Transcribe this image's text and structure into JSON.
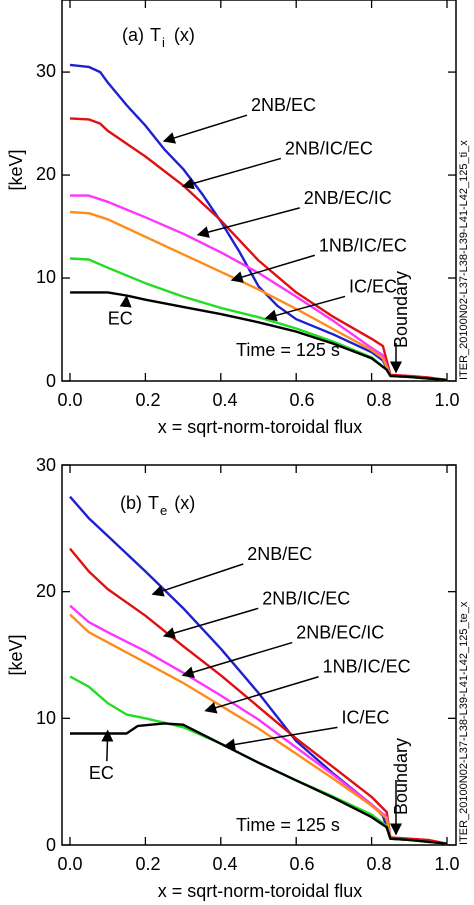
{
  "side_label": "ITER_20100N02-L37-L38-L39-L41-L42_125_ti_x",
  "side_label_2": "ITER_20100N02-L37-L38-L39-L41-L42_125_te_x",
  "colors": {
    "2NB/EC": "#1f1fd0",
    "2NB/IC/EC": "#e01010",
    "2NB/EC/IC": "#ff33ff",
    "1NB/IC/EC": "#ff8c1a",
    "IC/EC": "#22dd22",
    "EC": "#000000"
  },
  "chart_data": [
    {
      "type": "line",
      "title_prefix": "(a)",
      "title_main": "T",
      "title_sub": "i",
      "title_arg": "(x)",
      "ylabel": "[keV]",
      "xlabel": "x = sqrt-norm-toroidal flux",
      "annotation": "Time = 125 s",
      "boundary_label": "Boundary",
      "xlim": [
        0,
        1
      ],
      "ylim": [
        0,
        37
      ],
      "xticks": [
        "0.0",
        "0.2",
        "0.4",
        "0.6",
        "0.8",
        "1.0"
      ],
      "yticks": [
        "0",
        "10",
        "20",
        "30"
      ],
      "series": [
        {
          "name": "2NB/EC",
          "points": [
            [
              0,
              30.7
            ],
            [
              0.05,
              30.5
            ],
            [
              0.08,
              30
            ],
            [
              0.1,
              29
            ],
            [
              0.15,
              26.8
            ],
            [
              0.2,
              24.8
            ],
            [
              0.25,
              22.5
            ],
            [
              0.3,
              20.6
            ],
            [
              0.35,
              18.2
            ],
            [
              0.4,
              15.5
            ],
            [
              0.45,
              12.5
            ],
            [
              0.5,
              9.2
            ],
            [
              0.55,
              7.3
            ],
            [
              0.6,
              6
            ],
            [
              0.7,
              4.5
            ],
            [
              0.8,
              2.8
            ],
            [
              0.83,
              2
            ],
            [
              0.85,
              0.5
            ],
            [
              0.9,
              0.4
            ],
            [
              0.95,
              0.3
            ],
            [
              1.0,
              0.1
            ]
          ]
        },
        {
          "name": "2NB/IC/EC",
          "points": [
            [
              0,
              25.5
            ],
            [
              0.05,
              25.4
            ],
            [
              0.08,
              25
            ],
            [
              0.1,
              24.3
            ],
            [
              0.2,
              21.8
            ],
            [
              0.3,
              19
            ],
            [
              0.4,
              15.6
            ],
            [
              0.5,
              11.7
            ],
            [
              0.6,
              8.6
            ],
            [
              0.7,
              6.2
            ],
            [
              0.8,
              4.1
            ],
            [
              0.83,
              3.4
            ],
            [
              0.85,
              0.6
            ],
            [
              0.9,
              0.5
            ],
            [
              0.95,
              0.35
            ],
            [
              1.0,
              0.1
            ]
          ]
        },
        {
          "name": "2NB/EC/IC",
          "points": [
            [
              0,
              18
            ],
            [
              0.05,
              18
            ],
            [
              0.1,
              17.4
            ],
            [
              0.2,
              15.9
            ],
            [
              0.3,
              14.3
            ],
            [
              0.4,
              12.5
            ],
            [
              0.5,
              10.5
            ],
            [
              0.6,
              8.2
            ],
            [
              0.7,
              5.8
            ],
            [
              0.8,
              3.2
            ],
            [
              0.83,
              2.5
            ],
            [
              0.85,
              0.5
            ],
            [
              0.9,
              0.4
            ],
            [
              1.0,
              0.1
            ]
          ]
        },
        {
          "name": "1NB/IC/EC",
          "points": [
            [
              0,
              16.4
            ],
            [
              0.05,
              16.3
            ],
            [
              0.1,
              15.7
            ],
            [
              0.2,
              14
            ],
            [
              0.3,
              12.3
            ],
            [
              0.4,
              10.6
            ],
            [
              0.5,
              8.9
            ],
            [
              0.6,
              7
            ],
            [
              0.7,
              5
            ],
            [
              0.8,
              3
            ],
            [
              0.83,
              2.2
            ],
            [
              0.85,
              0.5
            ],
            [
              0.9,
              0.4
            ],
            [
              1.0,
              0.1
            ]
          ]
        },
        {
          "name": "IC/EC",
          "points": [
            [
              0,
              11.9
            ],
            [
              0.05,
              11.8
            ],
            [
              0.1,
              11
            ],
            [
              0.2,
              9.5
            ],
            [
              0.3,
              8.2
            ],
            [
              0.4,
              7.1
            ],
            [
              0.5,
              6.2
            ],
            [
              0.6,
              5.1
            ],
            [
              0.7,
              3.8
            ],
            [
              0.8,
              2.3
            ],
            [
              0.84,
              1.1
            ],
            [
              0.85,
              0.5
            ],
            [
              0.9,
              0.4
            ],
            [
              1.0,
              0.1
            ]
          ]
        },
        {
          "name": "EC",
          "points": [
            [
              0,
              8.6
            ],
            [
              0.1,
              8.6
            ],
            [
              0.15,
              8.3
            ],
            [
              0.2,
              7.9
            ],
            [
              0.3,
              7.2
            ],
            [
              0.4,
              6.5
            ],
            [
              0.5,
              5.7
            ],
            [
              0.6,
              4.8
            ],
            [
              0.7,
              3.6
            ],
            [
              0.8,
              2.2
            ],
            [
              0.84,
              1.1
            ],
            [
              0.85,
              0.5
            ],
            [
              0.9,
              0.4
            ],
            [
              1.0,
              0.1
            ]
          ]
        }
      ],
      "labels": [
        {
          "text": "2NB/EC",
          "tx": 0.48,
          "ty": 26.2,
          "ax": 0.25,
          "ay": 23.3
        },
        {
          "text": "2NB/IC/EC",
          "tx": 0.57,
          "ty": 22,
          "ax": 0.3,
          "ay": 18.9
        },
        {
          "text": "2NB/EC/IC",
          "tx": 0.62,
          "ty": 17.2,
          "ax": 0.34,
          "ay": 14.2
        },
        {
          "text": "1NB/IC/EC",
          "tx": 0.66,
          "ty": 12.6,
          "ax": 0.43,
          "ay": 9.8
        },
        {
          "text": "IC/EC",
          "tx": 0.74,
          "ty": 8.6,
          "ax": 0.52,
          "ay": 6.1
        },
        {
          "text": "EC",
          "tx": 0.1,
          "ty": 5.5,
          "ax": 0.15,
          "ay": 8.2
        }
      ]
    },
    {
      "type": "line",
      "title_prefix": "(b)",
      "title_main": "T",
      "title_sub": "e",
      "title_arg": "(x)",
      "ylabel": "[keV]",
      "xlabel": "x = sqrt-norm-toroidal flux",
      "annotation": "Time = 125 s",
      "boundary_label": "Boundary",
      "xlim": [
        0,
        1
      ],
      "ylim": [
        0,
        30
      ],
      "xticks": [
        "0.0",
        "0.2",
        "0.4",
        "0.6",
        "0.8",
        "1.0"
      ],
      "yticks": [
        "0",
        "10",
        "20",
        "30"
      ],
      "series": [
        {
          "name": "2NB/EC",
          "points": [
            [
              0,
              27.5
            ],
            [
              0.05,
              25.8
            ],
            [
              0.1,
              24.4
            ],
            [
              0.2,
              21.6
            ],
            [
              0.3,
              18.7
            ],
            [
              0.4,
              15.5
            ],
            [
              0.5,
              12
            ],
            [
              0.6,
              8.2
            ],
            [
              0.7,
              5.6
            ],
            [
              0.8,
              3.2
            ],
            [
              0.83,
              2.3
            ],
            [
              0.85,
              0.5
            ],
            [
              0.9,
              0.4
            ],
            [
              0.95,
              0.3
            ],
            [
              1.0,
              0.1
            ]
          ]
        },
        {
          "name": "2NB/IC/EC",
          "points": [
            [
              0,
              23.4
            ],
            [
              0.05,
              21.6
            ],
            [
              0.1,
              20.2
            ],
            [
              0.2,
              18.1
            ],
            [
              0.3,
              15.7
            ],
            [
              0.4,
              13.4
            ],
            [
              0.5,
              10.9
            ],
            [
              0.6,
              8.4
            ],
            [
              0.7,
              6.1
            ],
            [
              0.8,
              3.8
            ],
            [
              0.84,
              2.6
            ],
            [
              0.85,
              0.6
            ],
            [
              0.9,
              0.5
            ],
            [
              0.95,
              0.4
            ],
            [
              1.0,
              0.1
            ]
          ]
        },
        {
          "name": "2NB/EC/IC",
          "points": [
            [
              0,
              18.9
            ],
            [
              0.05,
              17.6
            ],
            [
              0.1,
              16.8
            ],
            [
              0.2,
              15.3
            ],
            [
              0.3,
              13.6
            ],
            [
              0.4,
              11.8
            ],
            [
              0.5,
              9.9
            ],
            [
              0.6,
              7.7
            ],
            [
              0.7,
              5.5
            ],
            [
              0.8,
              3.2
            ],
            [
              0.84,
              2.2
            ],
            [
              0.85,
              0.5
            ],
            [
              0.9,
              0.4
            ],
            [
              1.0,
              0.1
            ]
          ]
        },
        {
          "name": "1NB/IC/EC",
          "points": [
            [
              0,
              18.2
            ],
            [
              0.05,
              16.8
            ],
            [
              0.1,
              16
            ],
            [
              0.2,
              14.4
            ],
            [
              0.3,
              12.8
            ],
            [
              0.4,
              11
            ],
            [
              0.5,
              9.2
            ],
            [
              0.6,
              7.2
            ],
            [
              0.7,
              5.2
            ],
            [
              0.8,
              3.1
            ],
            [
              0.84,
              2.1
            ],
            [
              0.85,
              0.5
            ],
            [
              0.9,
              0.4
            ],
            [
              1.0,
              0.1
            ]
          ]
        },
        {
          "name": "IC/EC",
          "points": [
            [
              0,
              13.3
            ],
            [
              0.05,
              12.5
            ],
            [
              0.1,
              11.2
            ],
            [
              0.15,
              10.3
            ],
            [
              0.2,
              10
            ],
            [
              0.3,
              9.3
            ],
            [
              0.4,
              8
            ],
            [
              0.5,
              6.5
            ],
            [
              0.6,
              5.1
            ],
            [
              0.7,
              3.8
            ],
            [
              0.8,
              2.4
            ],
            [
              0.84,
              1.5
            ],
            [
              0.85,
              0.5
            ],
            [
              0.9,
              0.4
            ],
            [
              1.0,
              0.1
            ]
          ]
        },
        {
          "name": "EC",
          "points": [
            [
              0,
              8.8
            ],
            [
              0.1,
              8.8
            ],
            [
              0.15,
              8.8
            ],
            [
              0.18,
              9.4
            ],
            [
              0.25,
              9.6
            ],
            [
              0.3,
              9.5
            ],
            [
              0.4,
              8
            ],
            [
              0.5,
              6.5
            ],
            [
              0.6,
              5.1
            ],
            [
              0.7,
              3.7
            ],
            [
              0.8,
              2.2
            ],
            [
              0.84,
              1.4
            ],
            [
              0.85,
              0.5
            ],
            [
              0.9,
              0.4
            ],
            [
              1.0,
              0.1
            ]
          ]
        }
      ],
      "labels": [
        {
          "text": "2NB/EC",
          "tx": 0.47,
          "ty": 22.5,
          "ax": 0.22,
          "ay": 19.8
        },
        {
          "text": "2NB/IC/EC",
          "tx": 0.51,
          "ty": 19,
          "ax": 0.25,
          "ay": 16.5
        },
        {
          "text": "2NB/EC/IC",
          "tx": 0.6,
          "ty": 16.3,
          "ax": 0.3,
          "ay": 13.4
        },
        {
          "text": "1NB/IC/EC",
          "tx": 0.67,
          "ty": 13.6,
          "ax": 0.36,
          "ay": 10.6
        },
        {
          "text": "IC/EC",
          "tx": 0.72,
          "ty": 9.6,
          "ax": 0.41,
          "ay": 7.8
        },
        {
          "text": "EC",
          "tx": 0.05,
          "ty": 5.2,
          "ax": 0.1,
          "ay": 9
        }
      ]
    }
  ]
}
